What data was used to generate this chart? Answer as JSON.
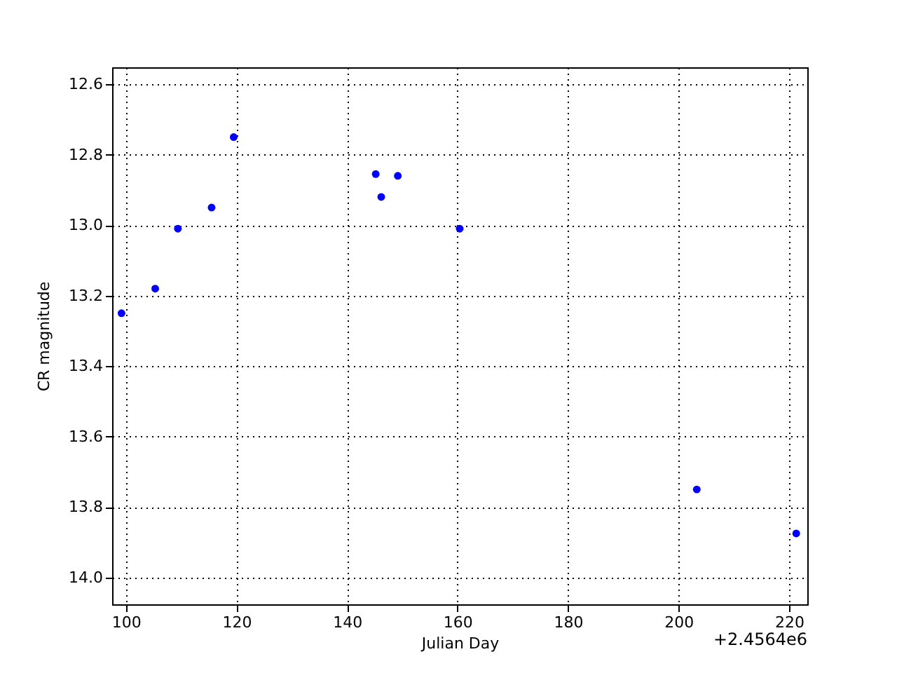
{
  "chart_data": {
    "type": "scatter",
    "xlabel": "Julian Day",
    "ylabel": "CR magnitude",
    "x": [
      99.2,
      105.3,
      109.4,
      115.5,
      119.5,
      145.2,
      146.2,
      149.2,
      160.4,
      203.3,
      221.3
    ],
    "series": [
      {
        "color": "#0000ff",
        "values": [
          13.25,
          13.18,
          13.01,
          12.95,
          12.75,
          12.855,
          12.92,
          12.86,
          13.01,
          13.75,
          13.875
        ]
      }
    ],
    "xlim": [
      97.5,
      223.3
    ],
    "xticks": [
      100,
      120,
      140,
      160,
      180,
      200,
      220
    ],
    "ylim": [
      14.076,
      12.552
    ],
    "yticks": [
      12.6,
      12.8,
      {
        "value": 13,
        "label": "13.0"
      },
      13.2,
      13.4,
      13.6,
      13.8,
      {
        "value": 14,
        "label": "14.0"
      }
    ],
    "annotations": [
      "+2.4564e6"
    ],
    "grid": true,
    "marker": "circle"
  }
}
